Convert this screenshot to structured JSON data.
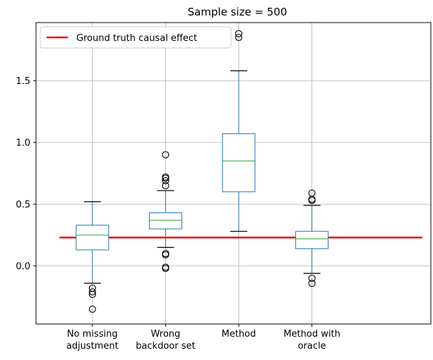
{
  "chart_data": {
    "type": "box",
    "title": "Sample size = 500",
    "xlabel": "",
    "ylabel": "",
    "ylim": [
      -0.47,
      1.97
    ],
    "yticks": [
      0.0,
      0.5,
      1.0,
      1.5
    ],
    "ytick_labels": [
      "0.0",
      "0.5",
      "1.0",
      "1.5"
    ],
    "grid": true,
    "categories": [
      [
        "No missing",
        "adjustment"
      ],
      [
        "Wrong",
        "backdoor set"
      ],
      [
        "Method"
      ],
      [
        "Method with",
        "oracle"
      ]
    ],
    "boxes": [
      {
        "whisker_low": -0.14,
        "q1": 0.13,
        "median": 0.25,
        "q3": 0.33,
        "whisker_high": 0.52,
        "outliers": [
          -0.18,
          -0.21,
          -0.23,
          -0.35
        ]
      },
      {
        "whisker_low": 0.15,
        "q1": 0.3,
        "median": 0.37,
        "q3": 0.43,
        "whisker_high": 0.61,
        "outliers": [
          0.65,
          0.69,
          0.71,
          0.72,
          0.9,
          0.09,
          0.1,
          -0.01,
          -0.02
        ]
      },
      {
        "whisker_low": 0.28,
        "q1": 0.6,
        "median": 0.85,
        "q3": 1.07,
        "whisker_high": 1.58,
        "outliers": [
          1.85,
          1.88
        ]
      },
      {
        "whisker_low": -0.06,
        "q1": 0.14,
        "median": 0.22,
        "q3": 0.28,
        "whisker_high": 0.49,
        "outliers": [
          0.53,
          0.54,
          0.59,
          -0.1,
          -0.14
        ]
      }
    ],
    "reference_line": {
      "label": "Ground truth causal effect",
      "value": 0.23,
      "color": "#e8110f"
    },
    "legend_position": "top-left",
    "colors": {
      "box": "#1f77b4",
      "median": "#2ca02c",
      "grid": "#b0b0b0"
    }
  }
}
